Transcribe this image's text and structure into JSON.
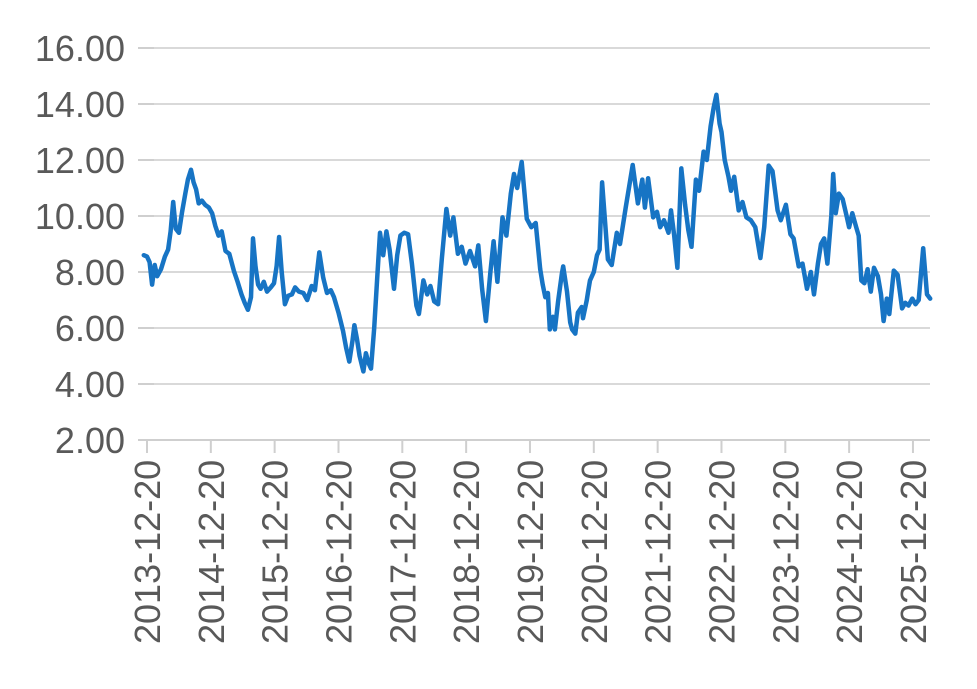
{
  "chart_data": {
    "type": "line",
    "title": "",
    "legend": "none",
    "grid": "horizontal",
    "ylim": [
      2,
      16
    ],
    "y_ticks": [
      2,
      4,
      6,
      8,
      10,
      12,
      14,
      16
    ],
    "y_tick_labels": [
      "2.00",
      "4.00",
      "6.00",
      "8.00",
      "10.00",
      "12.00",
      "14.00",
      "16.00"
    ],
    "x_tick_labels": [
      "2013-12-20",
      "2014-12-20",
      "2015-12-20",
      "2016-12-20",
      "2017-12-20",
      "2018-12-20",
      "2019-12-20",
      "2020-12-20",
      "2021-12-20",
      "2022-12-20",
      "2023-12-20",
      "2024-12-20",
      "2025-12-20"
    ],
    "x_unit": "years after 2013-12-20 (one x tick per year)",
    "xlim_years": [
      -0.1,
      12.3
    ],
    "colors": {
      "line": "#1774C4",
      "grid": "#d9d9d9",
      "axis": "#cfcfcf",
      "tick_text": "#595959",
      "background": "#ffffff"
    },
    "series": [
      {
        "name": "value",
        "points": [
          [
            -0.05,
            8.6
          ],
          [
            0.0,
            8.55
          ],
          [
            0.04,
            8.35
          ],
          [
            0.08,
            7.55
          ],
          [
            0.12,
            8.25
          ],
          [
            0.16,
            7.85
          ],
          [
            0.22,
            8.1
          ],
          [
            0.28,
            8.55
          ],
          [
            0.33,
            8.8
          ],
          [
            0.37,
            9.45
          ],
          [
            0.41,
            10.5
          ],
          [
            0.45,
            9.55
          ],
          [
            0.5,
            9.4
          ],
          [
            0.55,
            10.15
          ],
          [
            0.6,
            10.8
          ],
          [
            0.64,
            11.3
          ],
          [
            0.69,
            11.65
          ],
          [
            0.73,
            11.2
          ],
          [
            0.77,
            10.95
          ],
          [
            0.81,
            10.45
          ],
          [
            0.86,
            10.55
          ],
          [
            0.91,
            10.4
          ],
          [
            0.97,
            10.3
          ],
          [
            1.02,
            10.1
          ],
          [
            1.07,
            9.65
          ],
          [
            1.12,
            9.3
          ],
          [
            1.17,
            9.45
          ],
          [
            1.23,
            8.75
          ],
          [
            1.29,
            8.65
          ],
          [
            1.36,
            8.05
          ],
          [
            1.42,
            7.65
          ],
          [
            1.48,
            7.2
          ],
          [
            1.53,
            6.9
          ],
          [
            1.58,
            6.65
          ],
          [
            1.63,
            7.1
          ],
          [
            1.66,
            9.2
          ],
          [
            1.7,
            8.2
          ],
          [
            1.74,
            7.55
          ],
          [
            1.78,
            7.4
          ],
          [
            1.83,
            7.65
          ],
          [
            1.88,
            7.3
          ],
          [
            1.94,
            7.45
          ],
          [
            1.99,
            7.6
          ],
          [
            2.03,
            8.2
          ],
          [
            2.07,
            9.25
          ],
          [
            2.11,
            8.0
          ],
          [
            2.16,
            6.85
          ],
          [
            2.21,
            7.15
          ],
          [
            2.27,
            7.2
          ],
          [
            2.32,
            7.45
          ],
          [
            2.38,
            7.3
          ],
          [
            2.45,
            7.25
          ],
          [
            2.51,
            7.0
          ],
          [
            2.58,
            7.5
          ],
          [
            2.63,
            7.35
          ],
          [
            2.7,
            8.7
          ],
          [
            2.76,
            7.8
          ],
          [
            2.82,
            7.25
          ],
          [
            2.88,
            7.35
          ],
          [
            2.93,
            7.1
          ],
          [
            3.0,
            6.55
          ],
          [
            3.07,
            5.9
          ],
          [
            3.12,
            5.3
          ],
          [
            3.17,
            4.8
          ],
          [
            3.22,
            5.55
          ],
          [
            3.25,
            6.1
          ],
          [
            3.29,
            5.6
          ],
          [
            3.33,
            5.0
          ],
          [
            3.39,
            4.45
          ],
          [
            3.43,
            5.1
          ],
          [
            3.47,
            4.75
          ],
          [
            3.51,
            4.55
          ],
          [
            3.56,
            6.0
          ],
          [
            3.61,
            7.9
          ],
          [
            3.65,
            9.4
          ],
          [
            3.7,
            8.6
          ],
          [
            3.75,
            9.45
          ],
          [
            3.8,
            8.8
          ],
          [
            3.87,
            7.4
          ],
          [
            3.92,
            8.6
          ],
          [
            3.97,
            9.3
          ],
          [
            4.03,
            9.4
          ],
          [
            4.09,
            9.35
          ],
          [
            4.15,
            8.3
          ],
          [
            4.22,
            6.8
          ],
          [
            4.26,
            6.5
          ],
          [
            4.33,
            7.7
          ],
          [
            4.39,
            7.2
          ],
          [
            4.44,
            7.5
          ],
          [
            4.5,
            6.95
          ],
          [
            4.56,
            6.85
          ],
          [
            4.62,
            8.5
          ],
          [
            4.69,
            10.25
          ],
          [
            4.75,
            9.3
          ],
          [
            4.8,
            9.95
          ],
          [
            4.87,
            8.65
          ],
          [
            4.93,
            8.9
          ],
          [
            4.99,
            8.3
          ],
          [
            5.06,
            8.75
          ],
          [
            5.14,
            8.2
          ],
          [
            5.19,
            8.95
          ],
          [
            5.25,
            7.4
          ],
          [
            5.31,
            6.25
          ],
          [
            5.38,
            8.0
          ],
          [
            5.43,
            9.1
          ],
          [
            5.49,
            7.65
          ],
          [
            5.57,
            9.95
          ],
          [
            5.63,
            9.3
          ],
          [
            5.7,
            10.8
          ],
          [
            5.75,
            11.5
          ],
          [
            5.8,
            11.0
          ],
          [
            5.87,
            11.93
          ],
          [
            5.95,
            9.9
          ],
          [
            6.02,
            9.6
          ],
          [
            6.09,
            9.75
          ],
          [
            6.16,
            8.1
          ],
          [
            6.2,
            7.55
          ],
          [
            6.24,
            7.1
          ],
          [
            6.28,
            7.25
          ],
          [
            6.31,
            5.95
          ],
          [
            6.36,
            6.4
          ],
          [
            6.39,
            5.95
          ],
          [
            6.44,
            6.95
          ],
          [
            6.5,
            7.95
          ],
          [
            6.52,
            8.2
          ],
          [
            6.58,
            7.3
          ],
          [
            6.63,
            6.2
          ],
          [
            6.66,
            5.95
          ],
          [
            6.71,
            5.8
          ],
          [
            6.75,
            6.55
          ],
          [
            6.81,
            6.75
          ],
          [
            6.83,
            6.35
          ],
          [
            6.89,
            7.0
          ],
          [
            6.91,
            7.3
          ],
          [
            6.94,
            7.7
          ],
          [
            7.0,
            8.0
          ],
          [
            7.05,
            8.6
          ],
          [
            7.09,
            8.8
          ],
          [
            7.13,
            11.2
          ],
          [
            7.22,
            8.45
          ],
          [
            7.28,
            8.25
          ],
          [
            7.36,
            9.4
          ],
          [
            7.41,
            9.0
          ],
          [
            7.5,
            10.3
          ],
          [
            7.61,
            11.82
          ],
          [
            7.69,
            10.45
          ],
          [
            7.76,
            11.3
          ],
          [
            7.8,
            10.3
          ],
          [
            7.85,
            11.35
          ],
          [
            7.93,
            9.95
          ],
          [
            7.99,
            10.15
          ],
          [
            8.04,
            9.6
          ],
          [
            8.1,
            9.85
          ],
          [
            8.17,
            9.4
          ],
          [
            8.21,
            10.2
          ],
          [
            8.26,
            9.3
          ],
          [
            8.31,
            8.15
          ],
          [
            8.37,
            11.7
          ],
          [
            8.43,
            10.4
          ],
          [
            8.48,
            9.5
          ],
          [
            8.53,
            8.9
          ],
          [
            8.6,
            11.3
          ],
          [
            8.65,
            10.9
          ],
          [
            8.72,
            12.3
          ],
          [
            8.77,
            12.0
          ],
          [
            8.83,
            13.2
          ],
          [
            8.88,
            13.9
          ],
          [
            8.92,
            14.33
          ],
          [
            8.97,
            13.3
          ],
          [
            9.0,
            13.0
          ],
          [
            9.05,
            12.0
          ],
          [
            9.11,
            11.4
          ],
          [
            9.15,
            10.9
          ],
          [
            9.2,
            11.4
          ],
          [
            9.27,
            10.2
          ],
          [
            9.33,
            10.5
          ],
          [
            9.39,
            9.95
          ],
          [
            9.46,
            9.85
          ],
          [
            9.53,
            9.6
          ],
          [
            9.61,
            8.5
          ],
          [
            9.67,
            9.6
          ],
          [
            9.74,
            11.8
          ],
          [
            9.8,
            11.6
          ],
          [
            9.88,
            10.2
          ],
          [
            9.93,
            9.85
          ],
          [
            10.01,
            10.4
          ],
          [
            10.08,
            9.35
          ],
          [
            10.13,
            9.2
          ],
          [
            10.21,
            8.2
          ],
          [
            10.27,
            8.3
          ],
          [
            10.34,
            7.4
          ],
          [
            10.4,
            8.0
          ],
          [
            10.45,
            7.2
          ],
          [
            10.51,
            8.3
          ],
          [
            10.56,
            9.0
          ],
          [
            10.61,
            9.2
          ],
          [
            10.66,
            8.3
          ],
          [
            10.72,
            10.0
          ],
          [
            10.75,
            11.5
          ],
          [
            10.79,
            10.1
          ],
          [
            10.84,
            10.8
          ],
          [
            10.9,
            10.6
          ],
          [
            10.96,
            10.0
          ],
          [
            11.0,
            9.6
          ],
          [
            11.05,
            10.1
          ],
          [
            11.11,
            9.6
          ],
          [
            11.15,
            9.3
          ],
          [
            11.19,
            7.7
          ],
          [
            11.24,
            7.6
          ],
          [
            11.29,
            8.1
          ],
          [
            11.34,
            7.3
          ],
          [
            11.39,
            8.15
          ],
          [
            11.45,
            7.85
          ],
          [
            11.5,
            7.2
          ],
          [
            11.54,
            6.25
          ],
          [
            11.59,
            7.05
          ],
          [
            11.63,
            6.5
          ],
          [
            11.7,
            8.05
          ],
          [
            11.76,
            7.9
          ],
          [
            11.83,
            6.7
          ],
          [
            11.88,
            6.9
          ],
          [
            11.93,
            6.8
          ],
          [
            11.99,
            7.05
          ],
          [
            12.04,
            6.85
          ],
          [
            12.09,
            7.0
          ],
          [
            12.16,
            8.85
          ],
          [
            12.22,
            7.2
          ],
          [
            12.27,
            7.05
          ]
        ]
      }
    ]
  }
}
